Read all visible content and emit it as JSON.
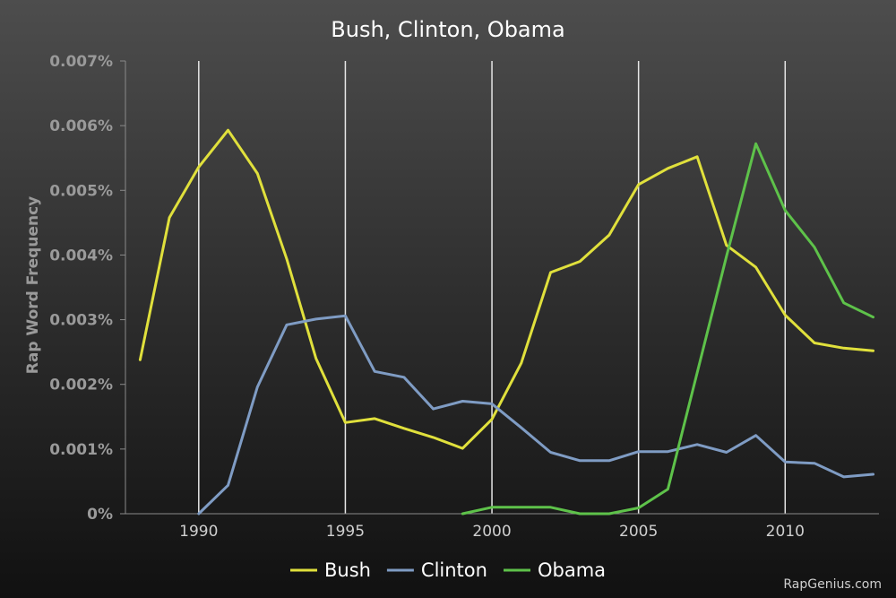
{
  "chart_data": {
    "type": "line",
    "title": "Bush, Clinton, Obama",
    "ylabel": "Rap Word Frequency",
    "xlabel": "",
    "xlim": [
      1987.5,
      2013.2
    ],
    "ylim": [
      0,
      0.007
    ],
    "x_ticks": [
      1990,
      1995,
      2000,
      2005,
      2010
    ],
    "y_ticks": [
      0,
      0.001,
      0.002,
      0.003,
      0.004,
      0.005,
      0.006,
      0.007
    ],
    "y_tick_labels": [
      "0%",
      "0.001%",
      "0.002%",
      "0.003%",
      "0.004%",
      "0.005%",
      "0.006%",
      "0.007%"
    ],
    "grid": "vertical",
    "legend_position": "bottom",
    "credit": "RapGenius.com",
    "series": [
      {
        "name": "Bush",
        "color": "#e0e03c",
        "points": [
          [
            1988,
            0.00238
          ],
          [
            1989,
            0.00458
          ],
          [
            1990,
            0.00536
          ],
          [
            1991,
            0.00593
          ],
          [
            1992,
            0.00526
          ],
          [
            1993,
            0.00394
          ],
          [
            1994,
            0.0024
          ],
          [
            1995,
            0.00141
          ],
          [
            1996,
            0.00147
          ],
          [
            1997,
            0.00132
          ],
          [
            1998,
            0.00118
          ],
          [
            1999,
            0.00101
          ],
          [
            2000,
            0.00146
          ],
          [
            2001,
            0.00233
          ],
          [
            2002,
            0.00373
          ],
          [
            2003,
            0.0039
          ],
          [
            2004,
            0.00431
          ],
          [
            2005,
            0.00509
          ],
          [
            2006,
            0.00534
          ],
          [
            2007,
            0.00552
          ],
          [
            2008,
            0.00415
          ],
          [
            2009,
            0.00381
          ],
          [
            2010,
            0.00307
          ],
          [
            2011,
            0.00264
          ],
          [
            2012,
            0.00256
          ],
          [
            2013,
            0.00252
          ]
        ]
      },
      {
        "name": "Clinton",
        "color": "#7f9cc4",
        "points": [
          [
            1990,
            0.0
          ],
          [
            1991,
            0.00044
          ],
          [
            1992,
            0.00196
          ],
          [
            1993,
            0.00292
          ],
          [
            1994,
            0.00301
          ],
          [
            1995,
            0.00306
          ],
          [
            1996,
            0.0022
          ],
          [
            1997,
            0.00211
          ],
          [
            1998,
            0.00162
          ],
          [
            1999,
            0.00174
          ],
          [
            2000,
            0.0017
          ],
          [
            2001,
            0.00133
          ],
          [
            2002,
            0.00095
          ],
          [
            2003,
            0.00082
          ],
          [
            2004,
            0.00082
          ],
          [
            2005,
            0.00096
          ],
          [
            2006,
            0.00096
          ],
          [
            2007,
            0.00107
          ],
          [
            2008,
            0.00095
          ],
          [
            2009,
            0.00121
          ],
          [
            2010,
            0.0008
          ],
          [
            2011,
            0.00078
          ],
          [
            2012,
            0.00057
          ],
          [
            2013,
            0.00061
          ]
        ]
      },
      {
        "name": "Obama",
        "color": "#5ec24a",
        "points": [
          [
            1999,
            0.0
          ],
          [
            2000,
            0.0001
          ],
          [
            2001,
            0.0001
          ],
          [
            2002,
            0.0001
          ],
          [
            2003,
            0.0
          ],
          [
            2004,
            0.0
          ],
          [
            2005,
            9e-05
          ],
          [
            2006,
            0.00038
          ],
          [
            2007,
            0.00218
          ],
          [
            2008,
            0.00398
          ],
          [
            2009,
            0.00572
          ],
          [
            2010,
            0.00469
          ],
          [
            2011,
            0.00412
          ],
          [
            2012,
            0.00326
          ],
          [
            2013,
            0.00304
          ]
        ]
      }
    ]
  }
}
